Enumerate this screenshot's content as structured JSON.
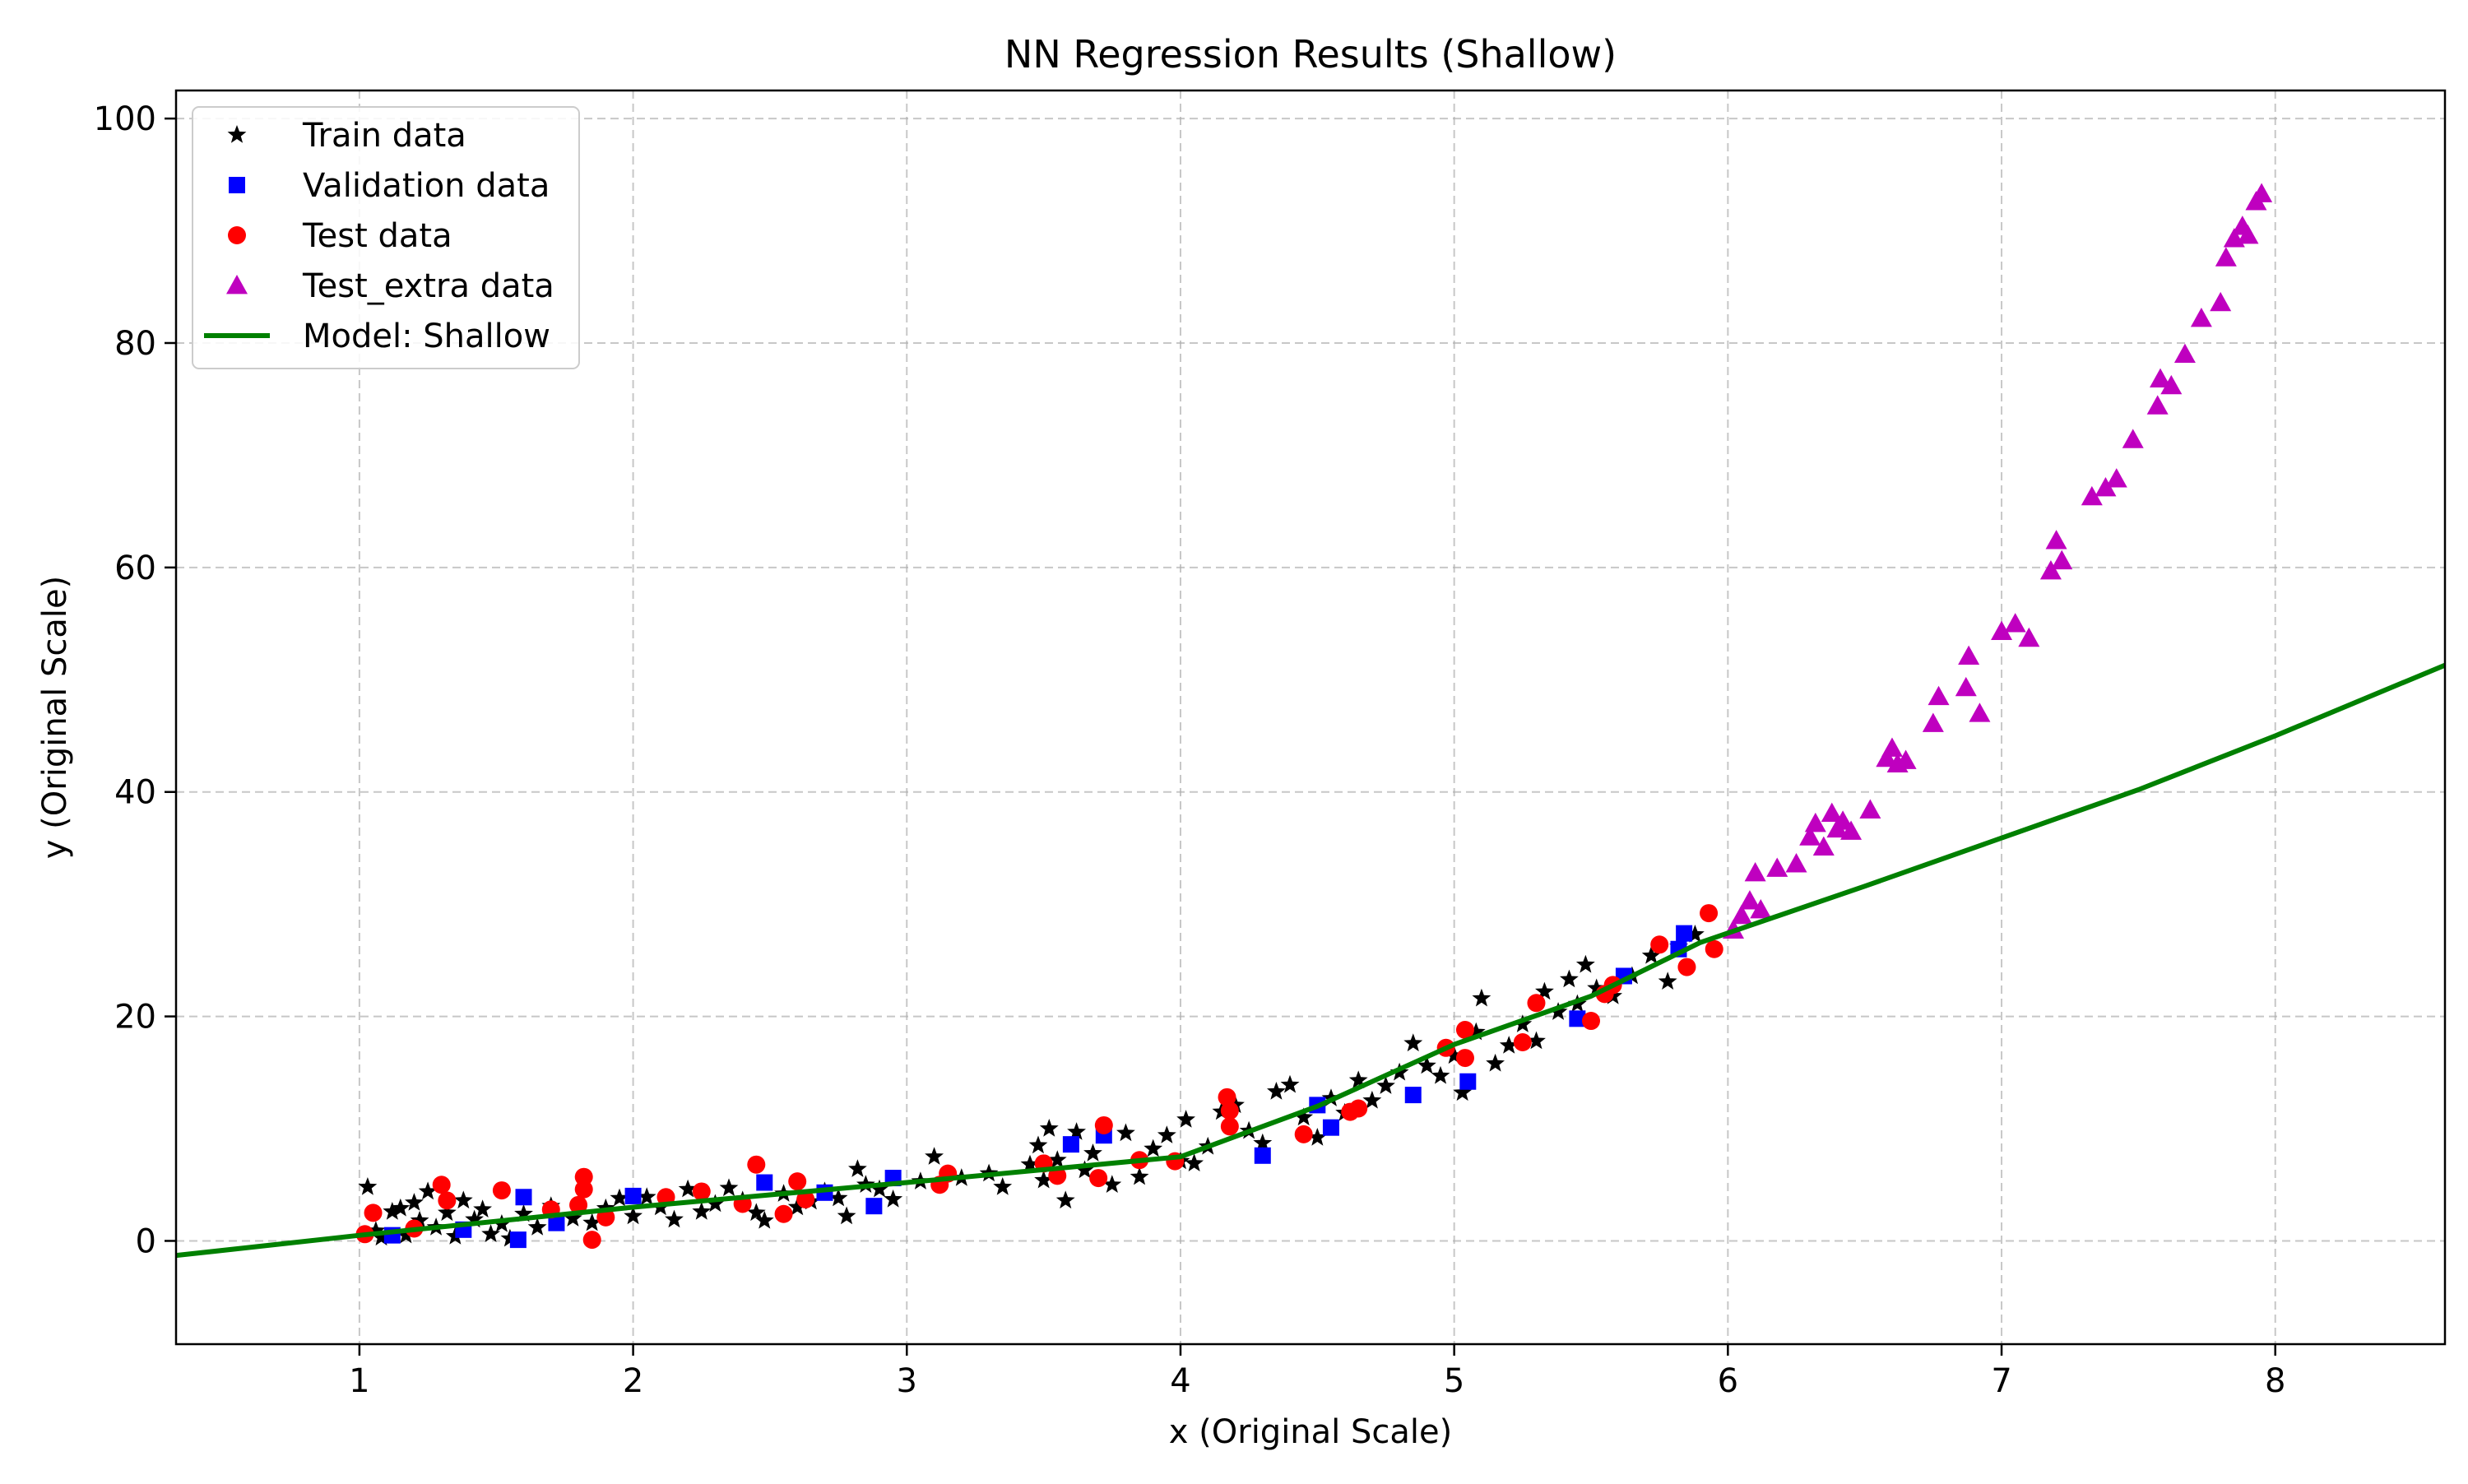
{
  "chart_data": {
    "type": "scatter",
    "title": "NN Regression Results (Shallow)",
    "xlabel": "x (Original Scale)",
    "ylabel": "y (Original Scale)",
    "xlim": [
      0.33,
      8.62
    ],
    "ylim": [
      -9.2,
      102.5
    ],
    "xticks": [
      1,
      2,
      3,
      4,
      5,
      6,
      7,
      8
    ],
    "yticks": [
      0,
      20,
      40,
      60,
      80,
      100
    ],
    "grid": true,
    "legend_position": "top-left",
    "series": [
      {
        "name": "Train data",
        "marker": "star",
        "color": "#000000",
        "points": [
          [
            1.03,
            4.8
          ],
          [
            1.06,
            0.9
          ],
          [
            1.08,
            0.3
          ],
          [
            1.12,
            2.6
          ],
          [
            1.15,
            2.9
          ],
          [
            1.17,
            0.5
          ],
          [
            1.2,
            3.4
          ],
          [
            1.22,
            1.8
          ],
          [
            1.25,
            4.4
          ],
          [
            1.28,
            1.2
          ],
          [
            1.32,
            2.5
          ],
          [
            1.35,
            0.4
          ],
          [
            1.38,
            3.6
          ],
          [
            1.42,
            1.9
          ],
          [
            1.45,
            2.8
          ],
          [
            1.48,
            0.6
          ],
          [
            1.52,
            1.5
          ],
          [
            1.55,
            0.2
          ],
          [
            1.6,
            2.4
          ],
          [
            1.65,
            1.2
          ],
          [
            1.7,
            3.1
          ],
          [
            1.78,
            2.0
          ],
          [
            1.85,
            1.6
          ],
          [
            1.9,
            2.9
          ],
          [
            1.95,
            3.8
          ],
          [
            2.0,
            2.2
          ],
          [
            2.05,
            3.9
          ],
          [
            2.1,
            3.0
          ],
          [
            2.15,
            1.9
          ],
          [
            2.2,
            4.6
          ],
          [
            2.25,
            2.6
          ],
          [
            2.3,
            3.3
          ],
          [
            2.35,
            4.7
          ],
          [
            2.4,
            3.6
          ],
          [
            2.45,
            2.5
          ],
          [
            2.48,
            1.8
          ],
          [
            2.55,
            4.2
          ],
          [
            2.6,
            3.0
          ],
          [
            2.65,
            3.5
          ],
          [
            2.7,
            4.4
          ],
          [
            2.75,
            3.8
          ],
          [
            2.78,
            2.2
          ],
          [
            2.82,
            6.4
          ],
          [
            2.85,
            5.0
          ],
          [
            2.9,
            4.6
          ],
          [
            2.95,
            3.7
          ],
          [
            3.05,
            5.3
          ],
          [
            3.1,
            7.5
          ],
          [
            3.2,
            5.6
          ],
          [
            3.3,
            6.0
          ],
          [
            3.35,
            4.8
          ],
          [
            3.45,
            6.8
          ],
          [
            3.48,
            8.5
          ],
          [
            3.5,
            5.4
          ],
          [
            3.52,
            10.0
          ],
          [
            3.55,
            7.2
          ],
          [
            3.58,
            3.6
          ],
          [
            3.62,
            9.7
          ],
          [
            3.65,
            6.3
          ],
          [
            3.68,
            7.8
          ],
          [
            3.75,
            5.0
          ],
          [
            3.8,
            9.6
          ],
          [
            3.85,
            5.7
          ],
          [
            3.9,
            8.2
          ],
          [
            3.95,
            9.4
          ],
          [
            4.0,
            7.1
          ],
          [
            4.02,
            10.8
          ],
          [
            4.05,
            6.9
          ],
          [
            4.1,
            8.4
          ],
          [
            4.15,
            11.5
          ],
          [
            4.2,
            12.1
          ],
          [
            4.25,
            9.8
          ],
          [
            4.3,
            8.7
          ],
          [
            4.35,
            13.3
          ],
          [
            4.4,
            13.9
          ],
          [
            4.45,
            11.0
          ],
          [
            4.5,
            9.2
          ],
          [
            4.55,
            12.7
          ],
          [
            4.6,
            11.4
          ],
          [
            4.65,
            14.3
          ],
          [
            4.7,
            12.5
          ],
          [
            4.75,
            13.8
          ],
          [
            4.8,
            15.0
          ],
          [
            4.85,
            17.6
          ],
          [
            4.9,
            15.6
          ],
          [
            4.95,
            14.7
          ],
          [
            5.0,
            16.5
          ],
          [
            5.03,
            13.2
          ],
          [
            5.08,
            18.6
          ],
          [
            5.1,
            21.6
          ],
          [
            5.15,
            15.8
          ],
          [
            5.2,
            17.4
          ],
          [
            5.25,
            19.3
          ],
          [
            5.3,
            17.8
          ],
          [
            5.33,
            22.2
          ],
          [
            5.38,
            20.4
          ],
          [
            5.42,
            23.3
          ],
          [
            5.45,
            21.1
          ],
          [
            5.48,
            24.6
          ],
          [
            5.52,
            22.5
          ],
          [
            5.58,
            21.8
          ],
          [
            5.65,
            23.6
          ],
          [
            5.72,
            25.4
          ],
          [
            5.78,
            23.1
          ],
          [
            5.82,
            26.2
          ],
          [
            5.88,
            27.3
          ]
        ]
      },
      {
        "name": "Validation data",
        "marker": "square",
        "color": "#0000ff",
        "points": [
          [
            1.12,
            0.5
          ],
          [
            1.38,
            1.0
          ],
          [
            1.58,
            0.1
          ],
          [
            1.6,
            3.9
          ],
          [
            1.72,
            1.6
          ],
          [
            2.0,
            4.0
          ],
          [
            2.48,
            5.2
          ],
          [
            2.7,
            4.3
          ],
          [
            2.88,
            3.1
          ],
          [
            2.95,
            5.6
          ],
          [
            3.6,
            8.6
          ],
          [
            3.72,
            9.4
          ],
          [
            4.3,
            7.6
          ],
          [
            4.5,
            12.1
          ],
          [
            4.55,
            10.1
          ],
          [
            4.85,
            13.0
          ],
          [
            5.05,
            14.2
          ],
          [
            5.45,
            19.8
          ],
          [
            5.62,
            23.6
          ],
          [
            5.82,
            26.0
          ],
          [
            5.84,
            27.4
          ]
        ]
      },
      {
        "name": "Test data",
        "marker": "circle",
        "color": "#ff0000",
        "points": [
          [
            1.02,
            0.6
          ],
          [
            1.05,
            2.5
          ],
          [
            1.2,
            1.1
          ],
          [
            1.3,
            5.0
          ],
          [
            1.32,
            3.6
          ],
          [
            1.52,
            4.5
          ],
          [
            1.7,
            2.8
          ],
          [
            1.8,
            3.2
          ],
          [
            1.82,
            5.7
          ],
          [
            1.82,
            4.6
          ],
          [
            1.85,
            0.1
          ],
          [
            1.9,
            2.1
          ],
          [
            2.12,
            3.9
          ],
          [
            2.25,
            4.4
          ],
          [
            2.4,
            3.3
          ],
          [
            2.45,
            6.8
          ],
          [
            2.55,
            2.4
          ],
          [
            2.6,
            5.3
          ],
          [
            2.63,
            3.7
          ],
          [
            3.12,
            5.0
          ],
          [
            3.15,
            6.0
          ],
          [
            3.5,
            6.9
          ],
          [
            3.55,
            5.8
          ],
          [
            3.7,
            5.6
          ],
          [
            3.72,
            10.3
          ],
          [
            3.85,
            7.2
          ],
          [
            3.98,
            7.1
          ],
          [
            4.17,
            12.8
          ],
          [
            4.18,
            11.6
          ],
          [
            4.18,
            10.2
          ],
          [
            4.45,
            9.5
          ],
          [
            4.62,
            11.5
          ],
          [
            4.65,
            11.8
          ],
          [
            4.97,
            17.2
          ],
          [
            5.04,
            18.8
          ],
          [
            5.04,
            16.3
          ],
          [
            5.25,
            17.7
          ],
          [
            5.3,
            21.2
          ],
          [
            5.5,
            19.6
          ],
          [
            5.55,
            22.0
          ],
          [
            5.58,
            22.8
          ],
          [
            5.75,
            26.4
          ],
          [
            5.85,
            24.4
          ],
          [
            5.93,
            29.2
          ],
          [
            5.95,
            26.0
          ]
        ]
      },
      {
        "name": "Test_extra data",
        "marker": "triangle",
        "color": "#bf00bf",
        "points": [
          [
            6.02,
            27.7
          ],
          [
            6.05,
            29.0
          ],
          [
            6.08,
            30.3
          ],
          [
            6.1,
            32.8
          ],
          [
            6.12,
            29.5
          ],
          [
            6.18,
            33.2
          ],
          [
            6.25,
            33.6
          ],
          [
            6.3,
            36.0
          ],
          [
            6.32,
            37.2
          ],
          [
            6.35,
            35.1
          ],
          [
            6.38,
            38.1
          ],
          [
            6.4,
            36.7
          ],
          [
            6.42,
            37.4
          ],
          [
            6.45,
            36.5
          ],
          [
            6.52,
            38.4
          ],
          [
            6.58,
            43.0
          ],
          [
            6.6,
            43.9
          ],
          [
            6.62,
            42.5
          ],
          [
            6.65,
            42.8
          ],
          [
            6.75,
            46.1
          ],
          [
            6.77,
            48.5
          ],
          [
            6.87,
            49.3
          ],
          [
            6.88,
            52.1
          ],
          [
            6.92,
            47.0
          ],
          [
            7.0,
            54.3
          ],
          [
            7.05,
            55.0
          ],
          [
            7.1,
            53.7
          ],
          [
            7.18,
            59.7
          ],
          [
            7.2,
            62.4
          ],
          [
            7.22,
            60.6
          ],
          [
            7.33,
            66.3
          ],
          [
            7.38,
            67.1
          ],
          [
            7.42,
            67.9
          ],
          [
            7.48,
            71.4
          ],
          [
            7.57,
            74.4
          ],
          [
            7.58,
            76.8
          ],
          [
            7.62,
            76.2
          ],
          [
            7.67,
            79.0
          ],
          [
            7.73,
            82.2
          ],
          [
            7.8,
            83.6
          ],
          [
            7.82,
            87.6
          ],
          [
            7.85,
            89.3
          ],
          [
            7.88,
            90.4
          ],
          [
            7.9,
            89.6
          ],
          [
            7.93,
            92.6
          ],
          [
            7.95,
            93.3
          ]
        ]
      },
      {
        "name": "Model: Shallow",
        "line": true,
        "color": "#008000",
        "points": [
          [
            0.33,
            -1.3
          ],
          [
            1.0,
            0.5
          ],
          [
            2.0,
            3.0
          ],
          [
            3.0,
            5.2
          ],
          [
            4.0,
            7.5
          ],
          [
            4.5,
            12.0
          ],
          [
            5.0,
            17.5
          ],
          [
            5.5,
            21.8
          ],
          [
            5.9,
            26.6
          ],
          [
            6.5,
            31.6
          ],
          [
            7.0,
            35.9
          ],
          [
            7.5,
            40.2
          ],
          [
            8.0,
            45.0
          ],
          [
            8.62,
            51.3
          ]
        ]
      }
    ]
  }
}
